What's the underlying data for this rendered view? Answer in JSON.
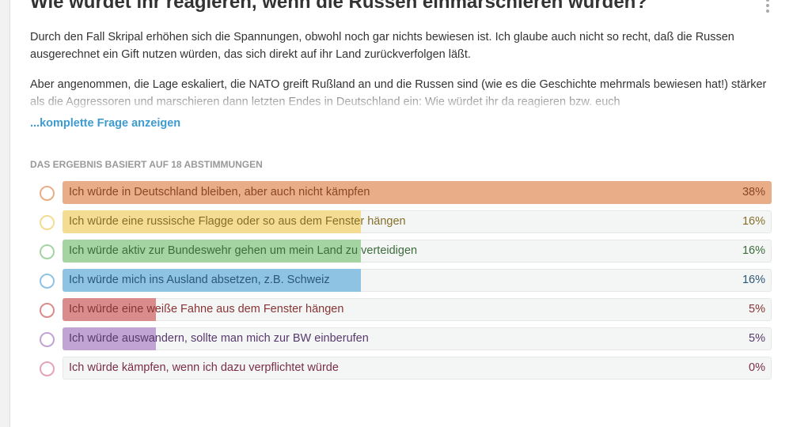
{
  "question": {
    "title": "Wie würdet ihr reagieren, wenn die Russen einmarschieren würden?",
    "paragraphs": [
      "Durch den Fall Skripal erhöhen sich die Spannungen, obwohl noch gar nichts bewiesen ist. Ich glaube auch nicht so recht, daß die Russen ausgerechnet ein Gift nutzen würden, das sich direkt auf ihr Land zurückverfolgen läßt.",
      "Aber angenommen, die Lage eskaliert, die NATO greift Rußland an und die Russen sind (wie es die Geschichte mehrmals bewiesen hat!) stärker als die Aggressoren und marschieren dann letzten Endes in Deutschland ein: Wie würdet ihr da reagieren bzw. euch"
    ],
    "more_link": "...komplette Frage anzeigen"
  },
  "poll": {
    "header": "DAS ERGEBNIS BASIERT AUF 18 ABSTIMMUNGEN",
    "options": [
      {
        "label": "Ich würde in Deutschland bleiben, aber auch nicht kämpfen",
        "value": 38,
        "value_label": "38%",
        "color": "#e9ad88",
        "text_color": "#8a4727"
      },
      {
        "label": "Ich würde eine russische Flagge oder so aus dem Fenster hängen",
        "value": 16,
        "value_label": "16%",
        "color": "#f4dc93",
        "text_color": "#85702a"
      },
      {
        "label": "Ich würde aktiv zur Bundeswehr gehen um mein Land zu verteidigen",
        "value": 16,
        "value_label": "16%",
        "color": "#a5d4a3",
        "text_color": "#3c6d3a"
      },
      {
        "label": "Ich würde mich ins Ausland absetzen, z.B. Schweiz",
        "value": 16,
        "value_label": "16%",
        "color": "#8fc3e3",
        "text_color": "#2b5877"
      },
      {
        "label": "Ich würde eine weiße Fahne aus dem Fenster hängen",
        "value": 5,
        "value_label": "5%",
        "color": "#da8c8c",
        "text_color": "#873434"
      },
      {
        "label": "Ich würde auswandern, sollte man mich zur BW einberufen",
        "value": 5,
        "value_label": "5%",
        "color": "#c1a4d3",
        "text_color": "#573a6b"
      },
      {
        "label": "Ich würde kämpfen, wenn ich dazu verpflichtet würde",
        "value": 0,
        "value_label": "0%",
        "color": "#e3a3bb",
        "text_color": "#7a2e4a"
      }
    ]
  }
}
